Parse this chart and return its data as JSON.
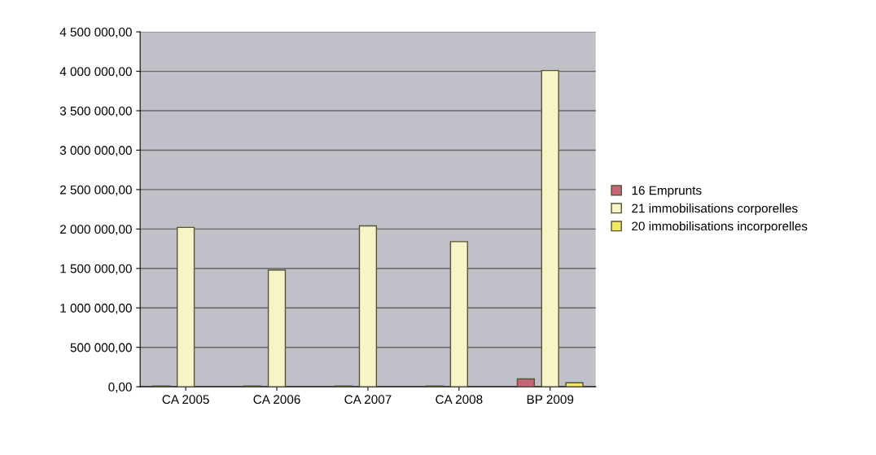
{
  "chart_data": {
    "type": "bar",
    "categories": [
      "CA 2005",
      "CA 2006",
      "CA 2007",
      "CA 2008",
      "BP 2009"
    ],
    "series": [
      {
        "name": "16 Emprunts",
        "color": "#c86478",
        "values": [
          10000,
          10000,
          10000,
          10000,
          100000
        ]
      },
      {
        "name": "21 immobilisations corporelles",
        "color": "#f8f4c8",
        "values": [
          2020000,
          1480000,
          2040000,
          1840000,
          4010000
        ]
      },
      {
        "name": "20 immobilisations incorporelles",
        "color": "#f0e860",
        "values": [
          null,
          null,
          null,
          null,
          50000
        ]
      }
    ],
    "ylim": [
      0,
      4500000
    ],
    "yticks": [
      {
        "value": 0,
        "label": "0,00"
      },
      {
        "value": 500000,
        "label": "500 000,00"
      },
      {
        "value": 1000000,
        "label": "1 000 000,00"
      },
      {
        "value": 1500000,
        "label": "1 500 000,00"
      },
      {
        "value": 2000000,
        "label": "2 000 000,00"
      },
      {
        "value": 2500000,
        "label": "2 500 000,00"
      },
      {
        "value": 3000000,
        "label": "3 000 000,00"
      },
      {
        "value": 3500000,
        "label": "3 500 000,00"
      },
      {
        "value": 4000000,
        "label": "4 000 000,00"
      },
      {
        "value": 4500000,
        "label": "4 500 000,00"
      }
    ],
    "grid": "y",
    "legend": "right"
  }
}
